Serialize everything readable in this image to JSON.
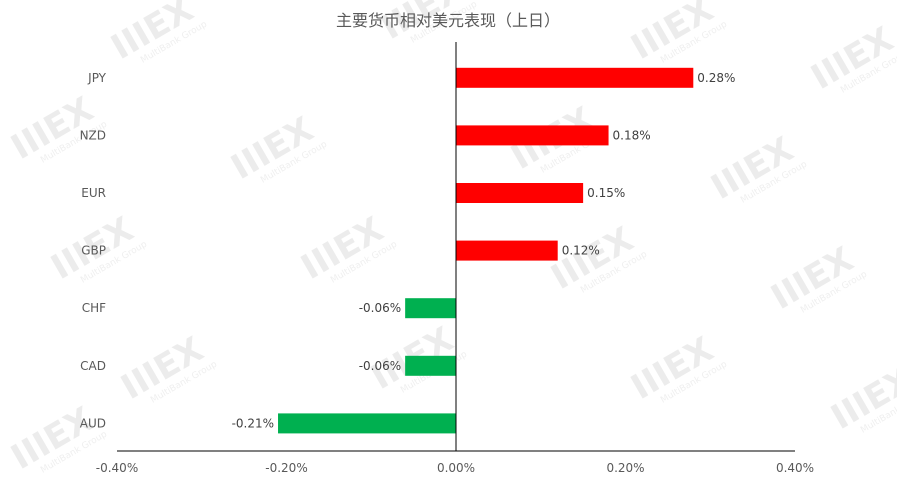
{
  "chart_data": {
    "type": "bar",
    "orientation": "horizontal",
    "title": "主要货币相对美元表现（上日）",
    "categories": [
      "JPY",
      "NZD",
      "EUR",
      "GBP",
      "CHF",
      "CAD",
      "AUD"
    ],
    "values": [
      0.28,
      0.18,
      0.15,
      0.12,
      -0.06,
      -0.06,
      -0.21
    ],
    "value_labels": [
      "0.28%",
      "0.18%",
      "0.15%",
      "0.12%",
      "-0.06%",
      "-0.06%",
      "-0.21%"
    ],
    "xlim": [
      -0.4,
      0.4
    ],
    "xticks": [
      -0.4,
      -0.2,
      0.0,
      0.2,
      0.4
    ],
    "xtick_labels": [
      "-0.40%",
      "-0.20%",
      "0.00%",
      "0.20%",
      "0.40%"
    ],
    "grid": false,
    "legend": "none",
    "colors": {
      "positive": "#ff0000",
      "negative": "#00b050",
      "axis": "#000000",
      "text": "#595959"
    }
  },
  "watermark": {
    "logo_text": "IIIEX",
    "sub_text": "MultiBank Group"
  }
}
